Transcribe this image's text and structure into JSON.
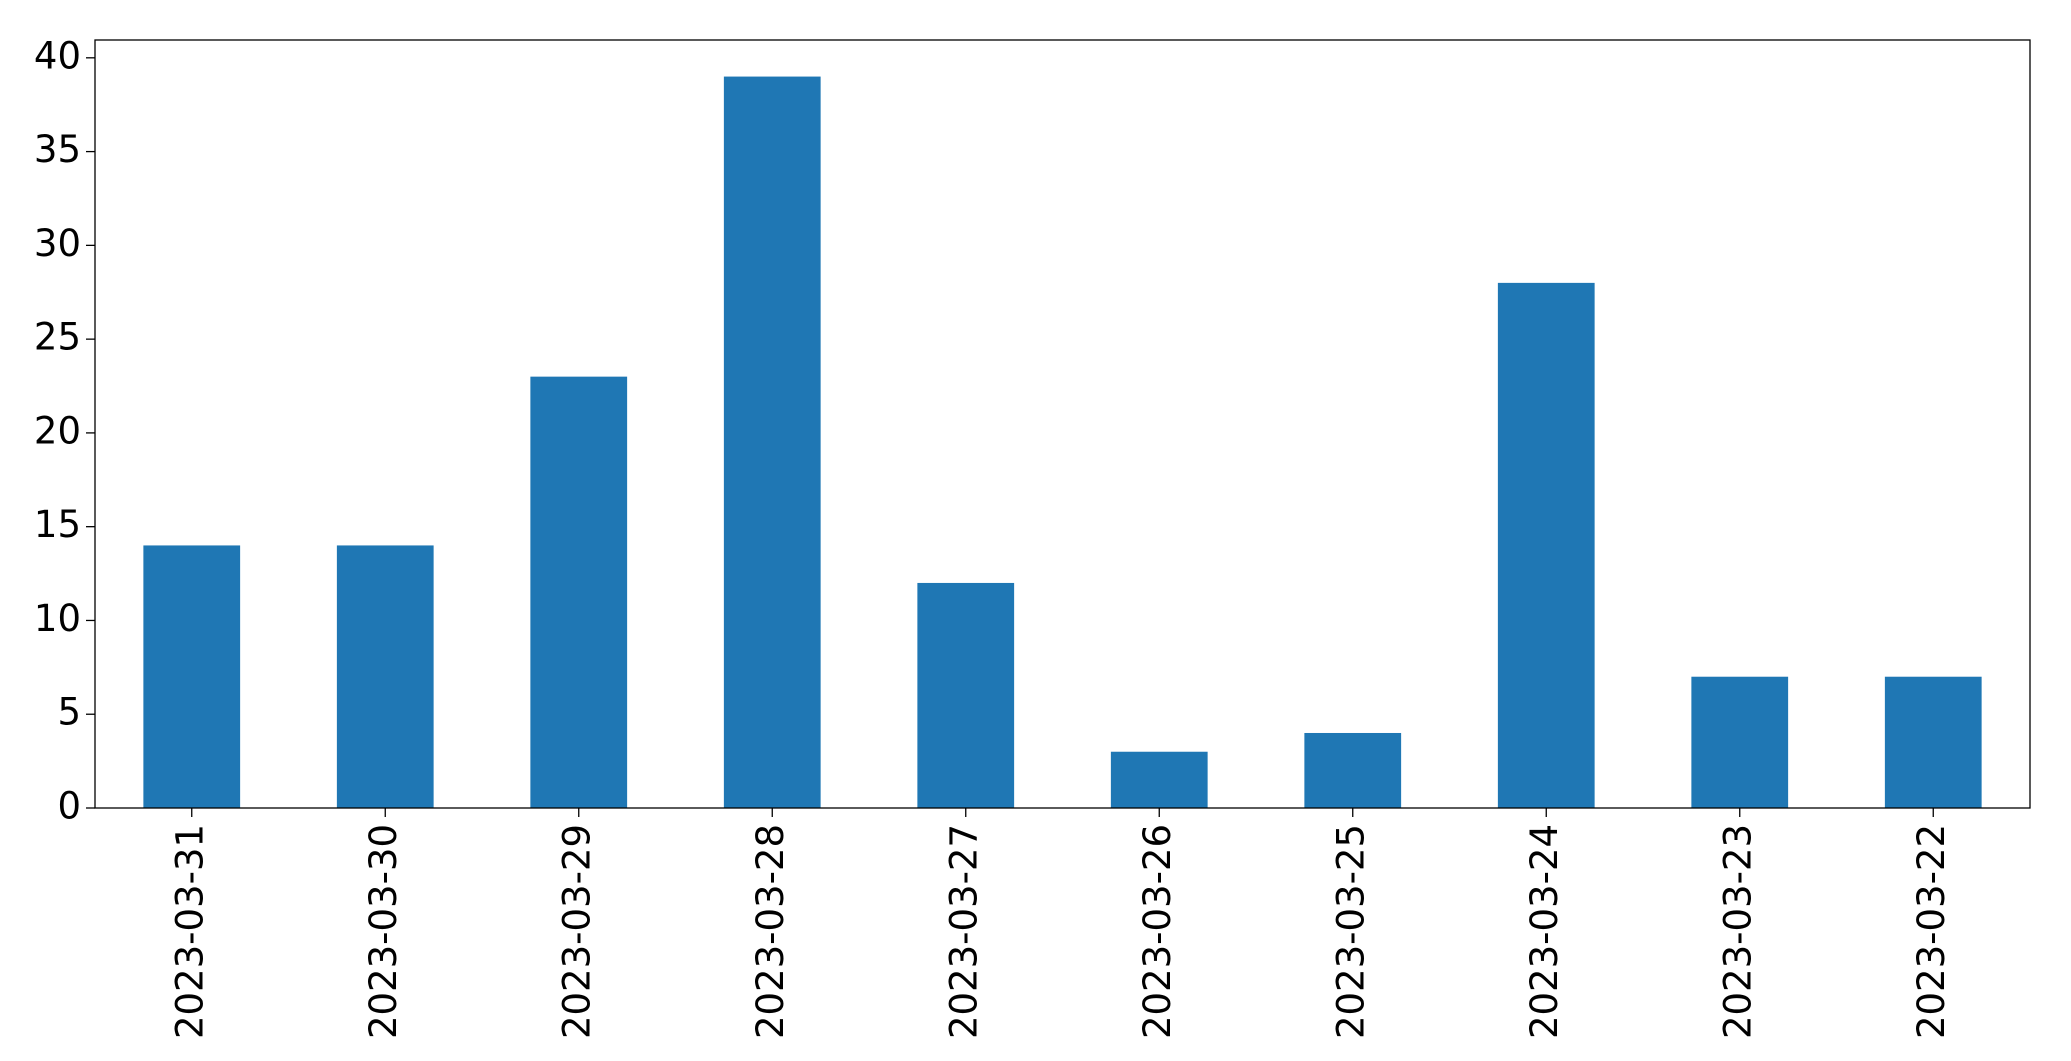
{
  "chart_data": {
    "type": "bar",
    "categories": [
      "2023-03-31",
      "2023-03-30",
      "2023-03-29",
      "2023-03-28",
      "2023-03-27",
      "2023-03-26",
      "2023-03-25",
      "2023-03-24",
      "2023-03-23",
      "2023-03-22"
    ],
    "values": [
      14,
      14,
      23,
      39,
      12,
      3,
      4,
      28,
      7,
      7
    ],
    "color": "#1f77b4",
    "ylim": [
      0,
      40.95
    ],
    "yticks": [
      0,
      5,
      10,
      15,
      20,
      25,
      30,
      35,
      40
    ],
    "grid": false
  }
}
